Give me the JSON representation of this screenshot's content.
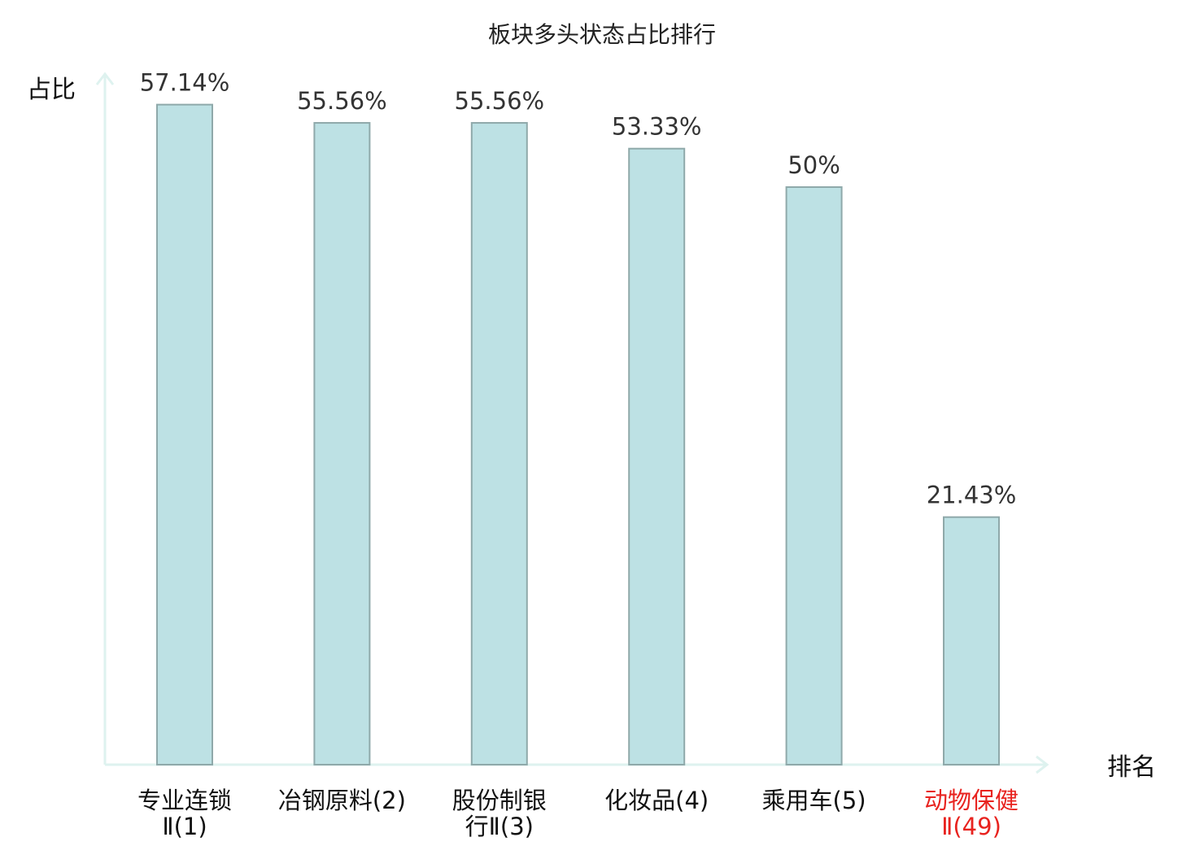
{
  "chart_data": {
    "type": "bar",
    "title": "板块多头状态占比排行",
    "xlabel": "排名",
    "ylabel": "占比",
    "ylim": [
      0,
      60
    ],
    "grid": false,
    "legend": "none",
    "categories": [
      [
        "专业连锁",
        "Ⅱ(1)"
      ],
      [
        "冶钢原料(2)"
      ],
      [
        "股份制银",
        "行Ⅱ(3)"
      ],
      [
        "化妆品(4)"
      ],
      [
        "乘用车(5)"
      ],
      [
        "动物保健",
        "Ⅱ(49)"
      ]
    ],
    "values": [
      57.14,
      55.56,
      55.56,
      53.33,
      50,
      21.43
    ],
    "value_labels": [
      "57.14%",
      "55.56%",
      "55.56%",
      "53.33%",
      "50%",
      "21.43%"
    ],
    "highlight_index": 5,
    "colors": {
      "bar_fill": "#bde1e4",
      "bar_stroke": "#8fa9aa",
      "axis": "#def2ef",
      "highlight_text": "#e8231f",
      "text": "#111111",
      "value_text": "#333333"
    }
  }
}
